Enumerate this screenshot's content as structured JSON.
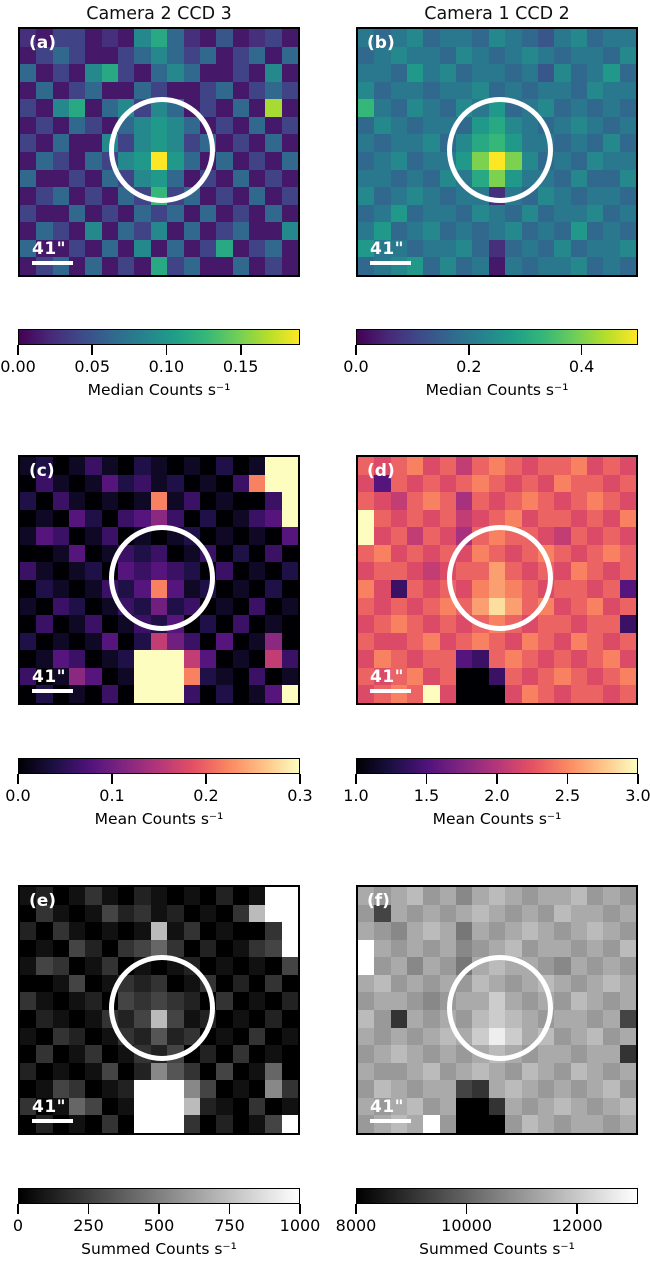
{
  "column_titles": [
    "Camera 2 CCD 3",
    "Camera 1 CCD 2"
  ],
  "colors": {
    "background": "#ffffff",
    "panel_border": "#000000",
    "annotation_circle": "#ffffff",
    "scalebar": "#ffffff",
    "text": "#000000"
  },
  "colormaps": {
    "viridis": [
      "#440154",
      "#482878",
      "#3e4a89",
      "#31688e",
      "#26828e",
      "#1f9e89",
      "#35b779",
      "#6ece58",
      "#b5de2b",
      "#fde725"
    ],
    "magma": [
      "#000004",
      "#1c1044",
      "#4f127b",
      "#812581",
      "#b5367a",
      "#e55064",
      "#fb8861",
      "#fec287",
      "#fcfdbf"
    ],
    "gray": [
      "#000000",
      "#ffffff"
    ]
  },
  "heatmap_patterns": {
    "a": [
      "21331217952141231",
      "13531135753513515",
      "51317931575113171",
      "15135115311351353",
      "317915737513151d1",
      "13153157875131513",
      "31511737873513151",
      "15315378f85151315",
      "51131537851315131",
      "13513153a35131513",
      "31151315351513151",
      "15317153715135117",
      "51131517151391351",
      "13515131935115131"
    ],
    "b": [
      "65675665765467566",
      "56766576567656657",
      "66586756656475685",
      "75665667565665766",
      "a6576576856756565",
      "57656658976567656",
      "65667579a86656575",
      "5675668cfc7565766",
      "66565769c86657557",
      "75676566265765665",
      "56856657657566756",
      "68567565675658565",
      "86656675256575667",
      "56785756165667565"
    ],
    "ce": [
      "120131021010201ff",
      "03101423120103bff",
      "20310101b1301003f",
      "0104203463020134f",
      "14301301012010104",
      "00140132301302030",
      "31012043432030102",
      "02101324b41201020",
      "10320132523010301",
      "03013013240203010",
      "20101402853040160",
      "0143012fff8401083",
      "3016401fffb210301",
      "0201030fff302014f"
    ],
    "df": [
      "a9ab9a8aba9aab9a9",
      "94a9a9aba9a9baa9a",
      "a98aba7a9aba9aba9",
      "fa9a9a89ab9aa9a9b",
      "f9a8a97abaa98a9a9",
      "ab9a9a9ba9aba9aba",
      "9aa989aaca9a9ba9a",
      "b93a9a9bcba9aa9a4",
      "a9a9abacecab9ab9a",
      "9aba9a9aba9aa9aa3",
      "a99ab9aba9ba9ba9a",
      "9ba9aa43aba9a9ab9",
      "a9ab9a003a9aba9ab",
      "9abaf90009ba9aa9a"
    ]
  },
  "chart_data": [
    {
      "type": "heatmap",
      "label": "(a)",
      "column_title": "Camera 2 CCD 3",
      "row": 0,
      "col": 0,
      "colormap": "viridis",
      "pattern": "a",
      "value_range": [
        0.0,
        0.19
      ],
      "colorbar": {
        "ticks": [
          0.0,
          0.05,
          0.1,
          0.15
        ],
        "tick_labels": [
          "0.00",
          "0.05",
          "0.10",
          "0.15"
        ],
        "label": "Median Counts s⁻¹"
      },
      "scalebar_label": "41\"",
      "circle_annotation": true
    },
    {
      "type": "heatmap",
      "label": "(b)",
      "column_title": "Camera 1 CCD 2",
      "row": 0,
      "col": 1,
      "colormap": "viridis",
      "pattern": "b",
      "value_range": [
        0.0,
        0.5
      ],
      "colorbar": {
        "ticks": [
          0.0,
          0.2,
          0.4
        ],
        "tick_labels": [
          "0.0",
          "0.2",
          "0.4"
        ],
        "label": "Median Counts s⁻¹"
      },
      "scalebar_label": "41\"",
      "circle_annotation": true
    },
    {
      "type": "heatmap",
      "label": "(c)",
      "column_title": "Camera 2 CCD 3",
      "row": 1,
      "col": 0,
      "colormap": "magma",
      "pattern": "ce",
      "value_range": [
        0.0,
        0.3
      ],
      "colorbar": {
        "ticks": [
          0.0,
          0.1,
          0.2,
          0.3
        ],
        "tick_labels": [
          "0.0",
          "0.1",
          "0.2",
          "0.3"
        ],
        "label": "Mean Counts s⁻¹"
      },
      "scalebar_label": "41\"",
      "circle_annotation": true
    },
    {
      "type": "heatmap",
      "label": "(d)",
      "column_title": "Camera 1 CCD 2",
      "row": 1,
      "col": 1,
      "colormap": "magma",
      "pattern": "df",
      "value_range": [
        1.0,
        3.0
      ],
      "colorbar": {
        "ticks": [
          1.0,
          1.5,
          2.0,
          2.5,
          3.0
        ],
        "tick_labels": [
          "1.0",
          "1.5",
          "2.0",
          "2.5",
          "3.0"
        ],
        "label": "Mean Counts s⁻¹"
      },
      "scalebar_label": "41\"",
      "circle_annotation": true
    },
    {
      "type": "heatmap",
      "label": "(e)",
      "column_title": "Camera 2 CCD 3",
      "row": 2,
      "col": 0,
      "colormap": "gray",
      "pattern": "ce",
      "value_range": [
        0,
        1000
      ],
      "colorbar": {
        "ticks": [
          0,
          250,
          500,
          750,
          1000
        ],
        "tick_labels": [
          "0",
          "250",
          "500",
          "750",
          "1000"
        ],
        "label": "Summed Counts s⁻¹"
      },
      "scalebar_label": "41\"",
      "circle_annotation": true
    },
    {
      "type": "heatmap",
      "label": "(f)",
      "column_title": "Camera 1 CCD 2",
      "row": 2,
      "col": 1,
      "colormap": "gray",
      "pattern": "df",
      "value_range": [
        8000,
        13100
      ],
      "colorbar": {
        "ticks": [
          8000,
          10000,
          12000
        ],
        "tick_labels": [
          "8000",
          "10000",
          "12000"
        ],
        "label": "Summed Counts s⁻¹"
      },
      "scalebar_label": "41\"",
      "circle_annotation": true
    }
  ]
}
